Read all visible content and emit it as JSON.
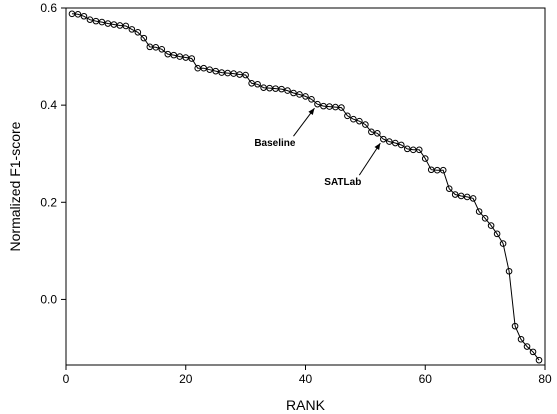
{
  "chart_data": {
    "type": "line",
    "xlabel": "RANK",
    "ylabel": "Normalized F1-score",
    "xlim": [
      0,
      80
    ],
    "ylim": [
      -0.135,
      0.6
    ],
    "xticks": [
      0,
      20,
      40,
      60,
      80
    ],
    "xtick_labels": [
      "0",
      "20",
      "40",
      "60",
      "80"
    ],
    "yticks": [
      0.0,
      0.2,
      0.4,
      0.6
    ],
    "ytick_labels": [
      "0.0",
      "0.2",
      "0.4",
      "0.6"
    ],
    "grid": false,
    "marker": "open-circle",
    "series": [
      {
        "x": [
          1,
          2,
          3,
          4,
          5,
          6,
          7,
          8,
          9,
          10,
          11,
          12,
          13,
          14,
          15,
          16,
          17,
          18,
          19,
          20,
          21,
          22,
          23,
          24,
          25,
          26,
          27,
          28,
          29,
          30,
          31,
          32,
          33,
          34,
          35,
          36,
          37,
          38,
          39,
          40,
          41,
          42,
          43,
          44,
          45,
          46,
          47,
          48,
          49,
          50,
          51,
          52,
          53,
          54,
          55,
          56,
          57,
          58,
          59,
          60,
          61,
          62,
          63,
          64,
          65,
          66,
          67,
          68,
          69,
          70,
          71,
          72,
          73,
          74,
          75,
          76,
          77,
          78,
          79
        ],
        "values": [
          0.588,
          0.587,
          0.583,
          0.576,
          0.573,
          0.571,
          0.568,
          0.566,
          0.564,
          0.563,
          0.556,
          0.55,
          0.538,
          0.52,
          0.519,
          0.515,
          0.505,
          0.503,
          0.5,
          0.498,
          0.496,
          0.476,
          0.476,
          0.473,
          0.47,
          0.467,
          0.466,
          0.465,
          0.463,
          0.462,
          0.445,
          0.443,
          0.436,
          0.435,
          0.434,
          0.433,
          0.43,
          0.425,
          0.422,
          0.418,
          0.412,
          0.402,
          0.398,
          0.397,
          0.396,
          0.395,
          0.378,
          0.371,
          0.367,
          0.36,
          0.345,
          0.342,
          0.33,
          0.325,
          0.322,
          0.318,
          0.31,
          0.308,
          0.308,
          0.29,
          0.267,
          0.266,
          0.266,
          0.228,
          0.216,
          0.213,
          0.211,
          0.208,
          0.181,
          0.167,
          0.152,
          0.135,
          0.115,
          0.058,
          -0.055,
          -0.082,
          -0.097,
          -0.108,
          -0.125
        ]
      }
    ],
    "annotations": [
      {
        "text": "Baseline",
        "x": 42,
        "y": 0.402
      },
      {
        "text": "SATLab",
        "x": 53,
        "y": 0.33
      }
    ]
  }
}
